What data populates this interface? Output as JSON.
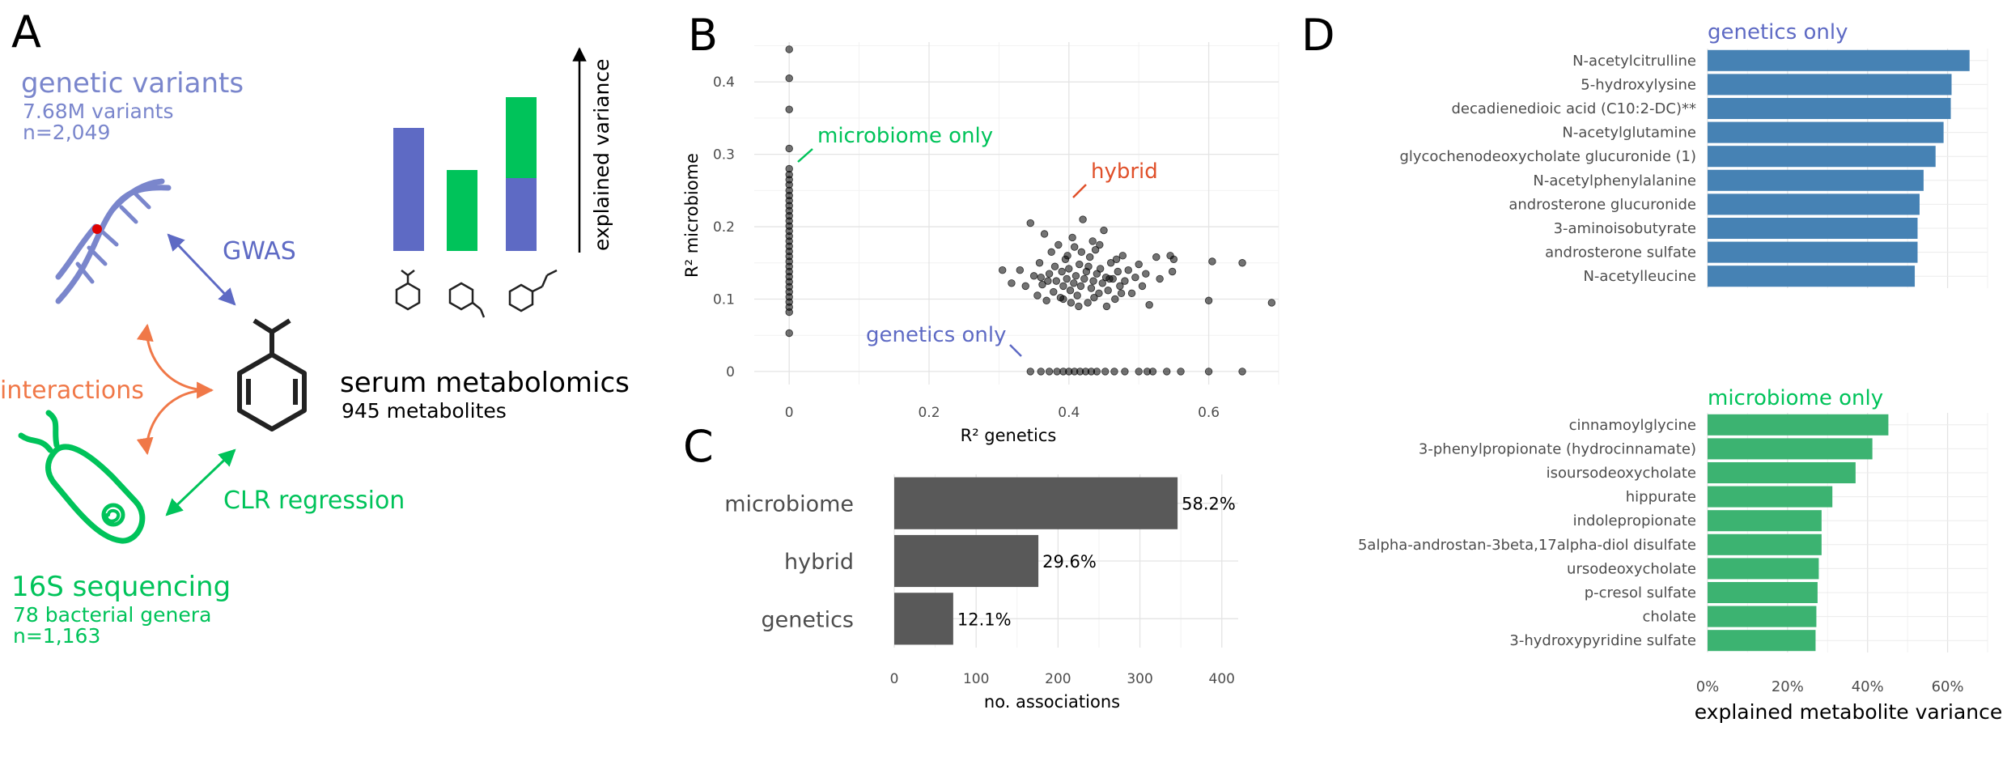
{
  "panel_a": {
    "letter": "A",
    "genetic": {
      "title": "genetic variants",
      "line1": "7.68M variants",
      "line2": "n=2,049"
    },
    "gwas_label": "GWAS",
    "interactions_label": "interactions",
    "clr_label": "CLR regression",
    "serum": {
      "title": "serum metabolomics",
      "subtitle": "945 metabolites"
    },
    "sequencing": {
      "title": "16S sequencing",
      "line1": "78 bacterial genera",
      "line2": "n=1,163"
    },
    "explained_variance_label": "explained variance",
    "colors": {
      "genetics": "#5e6ac4",
      "microbiome": "#00c35a",
      "interactions": "#f07848"
    }
  },
  "chart_data": [
    {
      "panel": "B",
      "type": "scatter",
      "xlabel": "R² genetics",
      "ylabel": "R² microbiome",
      "xlim": [
        -0.05,
        0.7
      ],
      "ylim": [
        -0.018,
        0.455
      ],
      "xticks": [
        0,
        0.2,
        0.4,
        0.6
      ],
      "xtick_labels": [
        "0",
        "0.2",
        "0.4",
        "0.6"
      ],
      "yticks": [
        0,
        0.1,
        0.2,
        0.3,
        0.4
      ],
      "ytick_labels": [
        "0",
        "0.1",
        "0.2",
        "0.3",
        "0.4"
      ],
      "grid": true,
      "annotations": [
        {
          "text": "microbiome only",
          "color": "#00c35a"
        },
        {
          "text": "hybrid",
          "color": "#e0502a"
        },
        {
          "text": "genetics only",
          "color": "#5e6ac4"
        }
      ],
      "points": [
        [
          0,
          0.445
        ],
        [
          0,
          0.405
        ],
        [
          0,
          0.362
        ],
        [
          0,
          0.308
        ],
        [
          0,
          0.28
        ],
        [
          0,
          0.272
        ],
        [
          0,
          0.265
        ],
        [
          0,
          0.258
        ],
        [
          0,
          0.25
        ],
        [
          0,
          0.243
        ],
        [
          0,
          0.236
        ],
        [
          0,
          0.229
        ],
        [
          0,
          0.222
        ],
        [
          0,
          0.215
        ],
        [
          0,
          0.208
        ],
        [
          0,
          0.201
        ],
        [
          0,
          0.194
        ],
        [
          0,
          0.187
        ],
        [
          0,
          0.18
        ],
        [
          0,
          0.173
        ],
        [
          0,
          0.166
        ],
        [
          0,
          0.159
        ],
        [
          0,
          0.152
        ],
        [
          0,
          0.145
        ],
        [
          0,
          0.138
        ],
        [
          0,
          0.131
        ],
        [
          0,
          0.124
        ],
        [
          0,
          0.117
        ],
        [
          0,
          0.11
        ],
        [
          0,
          0.103
        ],
        [
          0,
          0.096
        ],
        [
          0,
          0.089
        ],
        [
          0,
          0.082
        ],
        [
          0,
          0.053
        ],
        [
          0.345,
          0
        ],
        [
          0.36,
          0
        ],
        [
          0.372,
          0
        ],
        [
          0.383,
          0
        ],
        [
          0.392,
          0
        ],
        [
          0.4,
          0
        ],
        [
          0.408,
          0
        ],
        [
          0.416,
          0
        ],
        [
          0.424,
          0
        ],
        [
          0.432,
          0
        ],
        [
          0.44,
          0
        ],
        [
          0.452,
          0
        ],
        [
          0.465,
          0
        ],
        [
          0.48,
          0
        ],
        [
          0.5,
          0
        ],
        [
          0.512,
          0
        ],
        [
          0.52,
          0
        ],
        [
          0.54,
          0
        ],
        [
          0.56,
          0
        ],
        [
          0.6,
          0
        ],
        [
          0.648,
          0
        ],
        [
          0.305,
          0.14
        ],
        [
          0.318,
          0.122
        ],
        [
          0.33,
          0.14
        ],
        [
          0.338,
          0.118
        ],
        [
          0.345,
          0.205
        ],
        [
          0.35,
          0.132
        ],
        [
          0.355,
          0.105
        ],
        [
          0.358,
          0.15
        ],
        [
          0.362,
          0.12
        ],
        [
          0.365,
          0.19
        ],
        [
          0.368,
          0.098
        ],
        [
          0.372,
          0.135
        ],
        [
          0.375,
          0.165
        ],
        [
          0.378,
          0.11
        ],
        [
          0.38,
          0.145
        ],
        [
          0.382,
          0.125
        ],
        [
          0.385,
          0.175
        ],
        [
          0.388,
          0.102
        ],
        [
          0.39,
          0.138
        ],
        [
          0.392,
          0.118
        ],
        [
          0.395,
          0.155
        ],
        [
          0.397,
          0.128
        ],
        [
          0.4,
          0.142
        ],
        [
          0.402,
          0.112
        ],
        [
          0.405,
          0.185
        ],
        [
          0.407,
          0.122
        ],
        [
          0.41,
          0.132
        ],
        [
          0.412,
          0.105
        ],
        [
          0.415,
          0.148
        ],
        [
          0.417,
          0.118
        ],
        [
          0.42,
          0.21
        ],
        [
          0.422,
          0.128
        ],
        [
          0.425,
          0.138
        ],
        [
          0.427,
          0.095
        ],
        [
          0.43,
          0.158
        ],
        [
          0.432,
          0.115
        ],
        [
          0.435,
          0.125
        ],
        [
          0.438,
          0.168
        ],
        [
          0.44,
          0.135
        ],
        [
          0.443,
          0.108
        ],
        [
          0.445,
          0.142
        ],
        [
          0.448,
          0.122
        ],
        [
          0.45,
          0.195
        ],
        [
          0.453,
          0.13
        ],
        [
          0.456,
          0.112
        ],
        [
          0.46,
          0.15
        ],
        [
          0.463,
          0.128
        ],
        [
          0.466,
          0.1
        ],
        [
          0.47,
          0.138
        ],
        [
          0.473,
          0.118
        ],
        [
          0.477,
          0.16
        ],
        [
          0.48,
          0.125
        ],
        [
          0.485,
          0.14
        ],
        [
          0.49,
          0.108
        ],
        [
          0.495,
          0.13
        ],
        [
          0.5,
          0.148
        ],
        [
          0.505,
          0.118
        ],
        [
          0.51,
          0.135
        ],
        [
          0.515,
          0.092
        ],
        [
          0.525,
          0.158
        ],
        [
          0.53,
          0.128
        ],
        [
          0.545,
          0.16
        ],
        [
          0.55,
          0.155
        ],
        [
          0.548,
          0.138
        ],
        [
          0.6,
          0.098
        ],
        [
          0.605,
          0.152
        ],
        [
          0.648,
          0.15
        ],
        [
          0.69,
          0.095
        ],
        [
          0.398,
          0.16
        ],
        [
          0.403,
          0.095
        ],
        [
          0.408,
          0.172
        ],
        [
          0.418,
          0.165
        ],
        [
          0.428,
          0.145
        ],
        [
          0.436,
          0.102
        ],
        [
          0.444,
          0.175
        ],
        [
          0.458,
          0.128
        ],
        [
          0.468,
          0.155
        ],
        [
          0.475,
          0.108
        ],
        [
          0.392,
          0.1
        ],
        [
          0.414,
          0.09
        ],
        [
          0.434,
          0.18
        ],
        [
          0.454,
          0.09
        ],
        [
          0.37,
          0.125
        ],
        [
          0.36,
          0.13
        ]
      ]
    },
    {
      "panel": "C",
      "type": "bar",
      "orientation": "horizontal",
      "categories": [
        "microbiome",
        "hybrid",
        "genetics"
      ],
      "values": [
        346,
        176,
        72
      ],
      "data_labels": [
        "58.2%",
        "29.6%",
        "12.1%"
      ],
      "xlabel": "no. associations",
      "xlim": [
        0,
        420
      ],
      "xticks": [
        0,
        100,
        200,
        300,
        400
      ],
      "xtick_labels": [
        "0",
        "100",
        "200",
        "300",
        "400"
      ],
      "grid": true,
      "color": "#595959"
    },
    {
      "panel": "D",
      "type": "bar",
      "orientation": "horizontal",
      "title": "genetics only",
      "title_color": "#5e6ac4",
      "color": "#4682b4",
      "categories": [
        "N-acetylcitrulline",
        "5-hydroxylysine",
        "decadienedioic acid (C10:2-DC)**",
        "N-acetylglutamine",
        "glycochenodeoxycholate glucuronide (1)",
        "N-acetylphenylalanine",
        "androsterone glucuronide",
        "3-aminoisobutyrate",
        "androsterone sulfate",
        "N-acetylleucine"
      ],
      "values": [
        0.655,
        0.61,
        0.608,
        0.59,
        0.57,
        0.54,
        0.53,
        0.525,
        0.525,
        0.518
      ],
      "xlim": [
        0,
        0.7
      ],
      "grid": true
    },
    {
      "panel": "D",
      "type": "bar",
      "orientation": "horizontal",
      "title": "microbiome only",
      "title_color": "#00c35a",
      "color": "#3cb371",
      "categories": [
        "cinnamoylglycine",
        "3-phenylpropionate (hydrocinnamate)",
        "isoursodeoxycholate",
        "hippurate",
        "indolepropionate",
        "5alpha-androstan-3beta,17alpha-diol disulfate",
        "ursodeoxycholate",
        "p-cresol sulfate",
        "cholate",
        "3-hydroxypyridine sulfate"
      ],
      "values": [
        0.452,
        0.412,
        0.37,
        0.312,
        0.285,
        0.285,
        0.278,
        0.275,
        0.272,
        0.27
      ],
      "xlabel": "explained metabolite variance",
      "xlim": [
        0,
        0.7
      ],
      "xticks": [
        0,
        0.2,
        0.4,
        0.6
      ],
      "xtick_labels": [
        "0%",
        "20%",
        "40%",
        "60%"
      ],
      "grid": true
    }
  ],
  "panel_letters": {
    "b": "B",
    "c": "C",
    "d": "D"
  }
}
